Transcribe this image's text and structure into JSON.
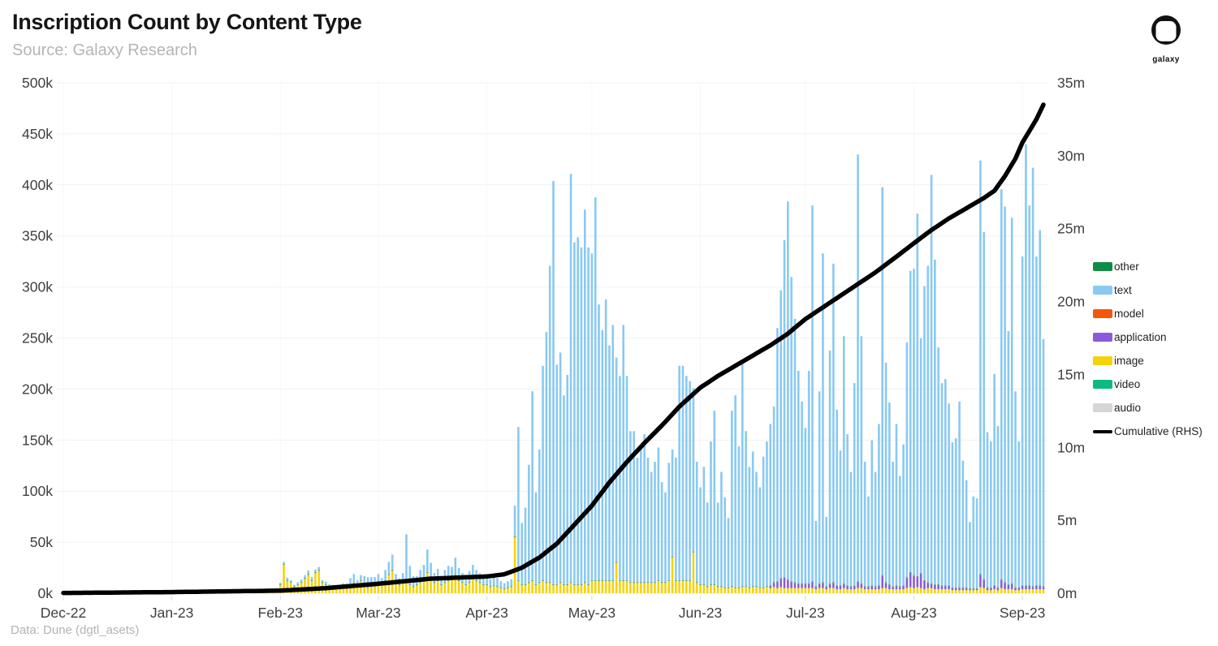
{
  "header": {
    "logo_label": "galaxy"
  },
  "footer": {
    "source_note": "Data: Dune (dgtl_asets)"
  },
  "chart_data": {
    "type": "bar",
    "stacked": true,
    "title": "Inscription Count by Content Type",
    "subtitle": "Source: Galaxy Research",
    "start_date": "2022-12-01",
    "days": 281,
    "left_axis": {
      "unit": "k",
      "max": 500,
      "step": 50,
      "ticks": [
        "0k",
        "50k",
        "100k",
        "150k",
        "200k",
        "250k",
        "300k",
        "350k",
        "400k",
        "450k",
        "500k"
      ]
    },
    "right_axis": {
      "unit": "m",
      "max": 35,
      "step": 5,
      "ticks": [
        "0m",
        "5m",
        "10m",
        "15m",
        "20m",
        "25m",
        "30m",
        "35m"
      ]
    },
    "x_axis": {
      "ticks": [
        {
          "day": 0,
          "label": "Dec-22"
        },
        {
          "day": 31,
          "label": "Jan-23"
        },
        {
          "day": 62,
          "label": "Feb-23"
        },
        {
          "day": 90,
          "label": "Mar-23"
        },
        {
          "day": 121,
          "label": "Apr-23"
        },
        {
          "day": 151,
          "label": "May-23"
        },
        {
          "day": 182,
          "label": "Jun-23"
        },
        {
          "day": 212,
          "label": "Jul-23"
        },
        {
          "day": 243,
          "label": "Aug-23"
        },
        {
          "day": 274,
          "label": "Sep-23"
        }
      ]
    },
    "legend": [
      {
        "name": "other",
        "color": "#0E8C46",
        "type": "box"
      },
      {
        "name": "text",
        "color": "#89C9F2",
        "type": "box"
      },
      {
        "name": "model",
        "color": "#F1580C",
        "type": "box"
      },
      {
        "name": "application",
        "color": "#8A5CDB",
        "type": "box"
      },
      {
        "name": "image",
        "color": "#F5D30B",
        "type": "box"
      },
      {
        "name": "video",
        "color": "#0FBA80",
        "type": "box"
      },
      {
        "name": "audio",
        "color": "#D6D6D6",
        "type": "box"
      },
      {
        "name": "Cumulative (RHS)",
        "color": "#000000",
        "type": "line"
      }
    ],
    "stack_order": [
      "image",
      "application",
      "video",
      "audio",
      "model",
      "other",
      "text"
    ],
    "series": [
      {
        "name": "text",
        "color": "#89C9F2",
        "values_k": [
          0.2,
          0.3,
          0.2,
          0.3,
          0.2,
          0.2,
          0.3,
          0.2,
          0.2,
          0.3,
          0.2,
          0.3,
          0.3,
          0.2,
          0.2,
          0.3,
          0.2,
          0.2,
          0.3,
          0.2,
          0.2,
          0.2,
          0.3,
          0.2,
          0.3,
          0.2,
          0.2,
          0.3,
          0.2,
          0.2,
          0.3,
          0.4,
          0.3,
          0.4,
          0.5,
          0.4,
          0.3,
          0.5,
          0.4,
          0.4,
          0.6,
          0.5,
          0.4,
          0.6,
          0.5,
          0.4,
          0.5,
          0.6,
          0.5,
          0.7,
          0.6,
          0.5,
          0.8,
          0.7,
          0.6,
          0.8,
          0.7,
          0.9,
          0.8,
          1.0,
          0.9,
          1.0,
          1.5,
          2,
          2.5,
          2,
          1.5,
          2,
          2.5,
          3,
          3.5,
          3,
          2.5,
          3,
          2,
          2.5,
          2,
          2.5,
          3,
          2.5,
          3,
          4,
          6,
          8,
          6,
          5,
          8,
          10,
          9,
          7,
          8,
          6,
          10,
          12,
          15,
          8,
          6,
          9,
          45,
          18,
          10,
          8,
          12,
          15,
          22,
          14,
          9,
          11,
          8,
          12,
          14,
          10,
          16,
          12,
          9,
          8,
          11,
          13,
          10,
          9,
          8,
          9,
          7,
          10,
          8,
          6,
          5,
          6,
          7,
          30,
          150,
          60,
          75,
          115,
          185,
          90,
          130,
          210,
          245,
          310,
          395,
          215,
          225,
          185,
          205,
          400,
          335,
          340,
          330,
          365,
          330,
          320,
          375,
          270,
          245,
          275,
          230,
          250,
          200,
          200,
          250,
          200,
          148,
          148,
          122,
          132,
          145,
          122,
          108,
          118,
          130,
          98,
          88,
          115,
          105,
          120,
          210,
          210,
          200,
          195,
          160,
          118,
          95,
          115,
          82,
          140,
          170,
          82,
          112,
          88,
          68,
          172,
          188,
          138,
          222,
          152,
          118,
          132,
          112,
          98,
          128,
          142,
          158,
          172,
          248,
          282,
          330,
          370,
          298,
          258,
          208,
          178,
          152,
          208,
          368,
          64,
          188,
          322,
          68,
          228,
          312,
          172,
          132,
          242,
          148,
          112,
          198,
          418,
          242,
          122,
          88,
          142,
          112,
          158,
          380,
          215,
          178,
          122,
          158,
          108,
          138,
          230,
          295,
          300,
          355,
          230,
          288,
          310,
          400,
          318,
          232,
          198,
          202,
          178,
          142,
          146,
          182,
          124,
          105,
          65,
          90,
          88,
          405,
          340,
          152,
          143,
          207,
          158,
          382,
          368,
          248,
          358,
          192,
          143,
          322,
          432,
          372,
          410,
          322,
          348,
          242
        ]
      },
      {
        "name": "image",
        "color": "#F5D30B",
        "values_k": [
          0.1,
          0.1,
          0.1,
          0.1,
          0.1,
          0.1,
          0.1,
          0.1,
          0.1,
          0.1,
          0.1,
          0.1,
          0.1,
          0.1,
          0.1,
          0.1,
          0.1,
          0.1,
          0.1,
          0.1,
          0.1,
          0.1,
          0.1,
          0.1,
          0.1,
          0.1,
          0.1,
          0.1,
          0.1,
          0.1,
          0.1,
          0.2,
          0.2,
          0.3,
          0.2,
          0.2,
          0.3,
          0.2,
          0.3,
          0.2,
          0.3,
          0.3,
          0.2,
          0.3,
          0.3,
          0.2,
          0.3,
          0.3,
          0.4,
          0.3,
          0.4,
          0.4,
          0.3,
          0.4,
          0.5,
          0.4,
          0.5,
          0.5,
          0.6,
          0.5,
          0.6,
          0.7,
          8,
          28,
          12,
          10,
          6,
          8,
          10,
          14,
          18,
          12,
          20,
          22,
          10,
          8,
          6,
          5,
          4,
          5,
          6,
          5,
          8,
          10,
          6,
          12,
          8,
          5,
          6,
          8,
          10,
          8,
          12,
          18,
          22,
          10,
          8,
          10,
          12,
          8,
          6,
          8,
          10,
          12,
          20,
          15,
          10,
          12,
          8,
          10,
          12,
          15,
          18,
          12,
          10,
          8,
          10,
          14,
          12,
          10,
          8,
          8,
          6,
          7,
          6,
          5,
          4,
          5,
          6,
          55,
          12,
          8,
          8,
          10,
          12,
          8,
          10,
          12,
          10,
          10,
          8,
          8,
          10,
          8,
          8,
          10,
          8,
          8,
          8,
          10,
          8,
          12,
          12,
          12,
          12,
          12,
          12,
          12,
          30,
          12,
          12,
          12,
          10,
          10,
          10,
          10,
          10,
          10,
          10,
          10,
          12,
          10,
          10,
          12,
          35,
          12,
          12,
          12,
          12,
          12,
          40,
          10,
          8,
          8,
          6,
          8,
          8,
          6,
          6,
          5,
          5,
          6,
          5,
          5,
          6,
          6,
          5,
          6,
          6,
          5,
          5,
          6,
          5,
          6,
          5,
          6,
          5,
          5,
          5,
          5,
          5,
          5,
          5,
          5,
          5,
          4,
          5,
          5,
          4,
          5,
          5,
          4,
          4,
          5,
          4,
          4,
          4,
          5,
          5,
          4,
          4,
          4,
          4,
          4,
          5,
          5,
          4,
          4,
          4,
          4,
          4,
          5,
          6,
          5,
          6,
          5,
          4,
          5,
          5,
          4,
          4,
          4,
          4,
          4,
          3,
          3,
          3,
          3,
          3,
          3,
          3,
          3,
          6,
          5,
          3,
          3,
          4,
          3,
          5,
          4,
          4,
          4,
          3,
          3,
          4,
          4,
          4,
          4,
          4,
          4,
          4
        ]
      },
      {
        "name": "application",
        "color": "#8A5CDB",
        "start_day": 202,
        "values_k": [
          2,
          4,
          6,
          8,
          10,
          8,
          6,
          5,
          4,
          4,
          4,
          4,
          6,
          2,
          4,
          5,
          2,
          4,
          5,
          3,
          3,
          4,
          3,
          2,
          3,
          6,
          4,
          2,
          2,
          3,
          2,
          3,
          12,
          5,
          4,
          2,
          3,
          2,
          3,
          10,
          14,
          12,
          10,
          14,
          8,
          5,
          4,
          4,
          4,
          3,
          3,
          3,
          2,
          2,
          2,
          2,
          2,
          1,
          1,
          1,
          12,
          8,
          2,
          2,
          3,
          2,
          8,
          6,
          4,
          5,
          2,
          2,
          3,
          3,
          3,
          2,
          3,
          3,
          2
        ]
      },
      {
        "name": "video",
        "color": "#0FBA80",
        "uniform_k": 0.25
      },
      {
        "name": "audio",
        "color": "#D6D6D6",
        "uniform_k": 0.3
      },
      {
        "name": "model",
        "color": "#F1580C",
        "uniform_k": 0.12
      },
      {
        "name": "other",
        "color": "#0E8C46",
        "uniform_k": 0.12
      }
    ],
    "cumulative_rhs": {
      "name": "Cumulative (RHS)",
      "color": "#000000",
      "unit": "m",
      "anchors_day_m": [
        [
          0,
          0.02
        ],
        [
          31,
          0.08
        ],
        [
          62,
          0.18
        ],
        [
          75,
          0.35
        ],
        [
          90,
          0.65
        ],
        [
          105,
          1.0
        ],
        [
          121,
          1.15
        ],
        [
          126,
          1.3
        ],
        [
          131,
          1.75
        ],
        [
          136,
          2.45
        ],
        [
          141,
          3.4
        ],
        [
          146,
          4.7
        ],
        [
          151,
          6.0
        ],
        [
          156,
          7.6
        ],
        [
          161,
          9.0
        ],
        [
          166,
          10.3
        ],
        [
          171,
          11.5
        ],
        [
          176,
          12.8
        ],
        [
          182,
          14.1
        ],
        [
          187,
          14.9
        ],
        [
          192,
          15.6
        ],
        [
          197,
          16.3
        ],
        [
          202,
          17.0
        ],
        [
          207,
          17.8
        ],
        [
          212,
          18.8
        ],
        [
          217,
          19.6
        ],
        [
          222,
          20.4
        ],
        [
          227,
          21.2
        ],
        [
          232,
          22.0
        ],
        [
          237,
          22.9
        ],
        [
          243,
          24.0
        ],
        [
          248,
          24.9
        ],
        [
          253,
          25.7
        ],
        [
          258,
          26.4
        ],
        [
          263,
          27.1
        ],
        [
          266,
          27.6
        ],
        [
          269,
          28.6
        ],
        [
          272,
          29.8
        ],
        [
          274,
          30.9
        ],
        [
          276,
          31.7
        ],
        [
          278,
          32.5
        ],
        [
          280,
          33.5
        ]
      ]
    }
  }
}
